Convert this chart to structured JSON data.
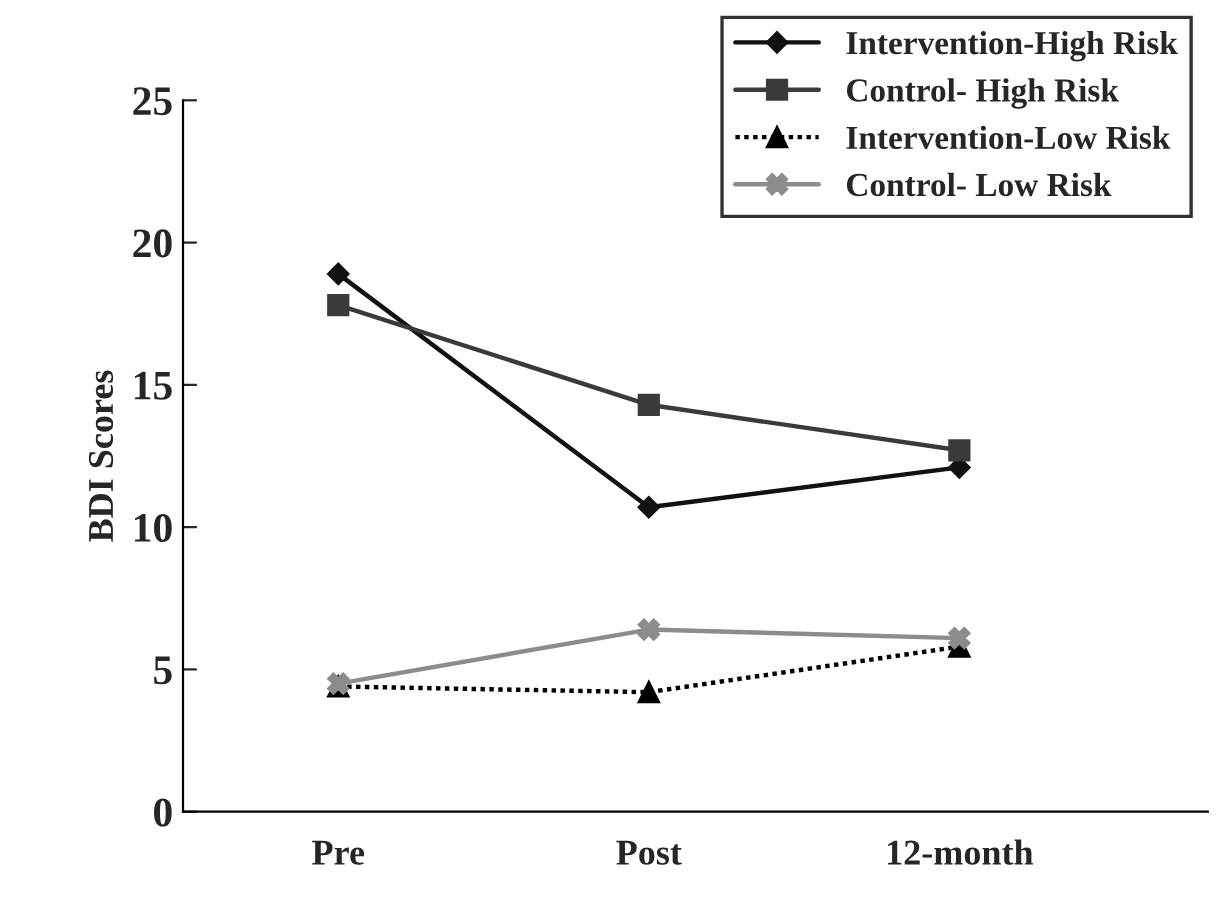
{
  "chart_data": {
    "type": "line",
    "ylabel": "BDI Scores",
    "categories": [
      "Pre",
      "Post",
      "12-month"
    ],
    "ylim": [
      0,
      25
    ],
    "yticks": [
      0,
      5,
      10,
      15,
      20,
      25
    ],
    "grid": false,
    "legend": "top right",
    "series": [
      {
        "name": "Intervention-High Risk",
        "color": "#111111",
        "marker": "diamond",
        "line_style": "solid",
        "values": [
          18.9,
          10.7,
          12.1
        ]
      },
      {
        "name": "Control- High Risk",
        "color": "#3a3a3a",
        "marker": "square",
        "line_style": "solid",
        "values": [
          17.8,
          14.3,
          12.7
        ]
      },
      {
        "name": "Intervention-Low Risk",
        "color": "#000000",
        "marker": "triangle",
        "line_style": "dotted",
        "values": [
          4.4,
          4.2,
          5.8
        ]
      },
      {
        "name": "Control- Low Risk",
        "color": "#8c8c8c",
        "marker": "cross",
        "line_style": "solid",
        "values": [
          4.5,
          6.4,
          6.1
        ]
      }
    ]
  }
}
